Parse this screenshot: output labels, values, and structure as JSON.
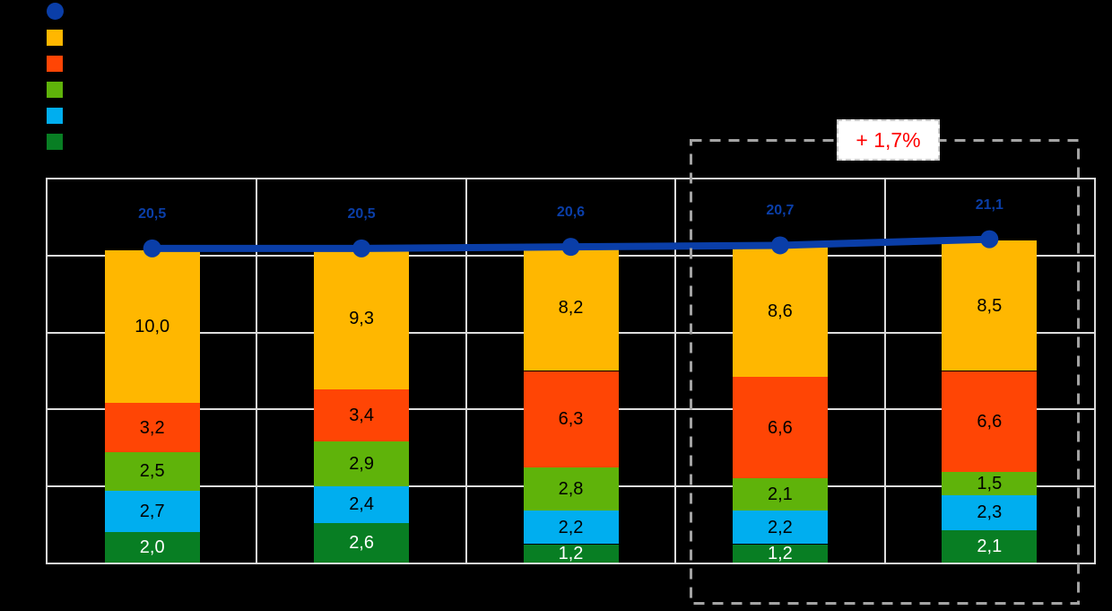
{
  "canvas": {
    "background": "#000000"
  },
  "colors": {
    "grid": "#DCDCDC",
    "line_blue": "#0A3EA8",
    "dashed_box": "#A3A3A3",
    "annotation_red": "#FE0000",
    "annotation_bg": "#FFFFFF"
  },
  "legend": {
    "items": [
      {
        "name": "total-line-marker",
        "marker": "circle",
        "color": "#0A3EA8",
        "label": ""
      },
      {
        "name": "series-yellow",
        "marker": "square",
        "color": "#FFB700",
        "label": ""
      },
      {
        "name": "series-orange",
        "marker": "square",
        "color": "#FF4505",
        "label": ""
      },
      {
        "name": "series-green",
        "marker": "square",
        "color": "#5FB30A",
        "label": ""
      },
      {
        "name": "series-cyan",
        "marker": "square",
        "color": "#00AEEF",
        "label": ""
      },
      {
        "name": "series-darkgreen",
        "marker": "square",
        "color": "#087E23",
        "label": ""
      }
    ]
  },
  "chart_data": {
    "type": "bar",
    "subtype": "stacked-column-with-total-line",
    "categories": [
      "",
      "",
      "",
      "",
      ""
    ],
    "series": [
      {
        "name": "darkgreen-bottom",
        "color": "#087E23",
        "label_color": "#FFFFFF",
        "values": [
          2.0,
          2.6,
          1.2,
          1.2,
          2.1
        ],
        "labels": [
          "2,0",
          "2,6",
          "1,2",
          "1,2",
          "2,1"
        ]
      },
      {
        "name": "cyan",
        "color": "#00AEEF",
        "label_color": "#000000",
        "values": [
          2.7,
          2.4,
          2.2,
          2.2,
          2.3
        ],
        "labels": [
          "2,7",
          "2,4",
          "2,2",
          "2,2",
          "2,3"
        ]
      },
      {
        "name": "green",
        "color": "#5FB30A",
        "label_color": "#000000",
        "values": [
          2.5,
          2.9,
          2.8,
          2.1,
          1.5
        ],
        "labels": [
          "2,5",
          "2,9",
          "2,8",
          "2,1",
          "1,5"
        ]
      },
      {
        "name": "orange",
        "color": "#FF4505",
        "label_color": "#000000",
        "values": [
          3.2,
          3.4,
          6.3,
          6.6,
          6.6
        ],
        "labels": [
          "3,2",
          "3,4",
          "6,3",
          "6,6",
          "6,6"
        ]
      },
      {
        "name": "yellow-top",
        "color": "#FFB700",
        "label_color": "#000000",
        "values": [
          10.0,
          9.3,
          8.2,
          8.6,
          8.5
        ],
        "labels": [
          "10,0",
          "9,3",
          "8,2",
          "8,6",
          "8,5"
        ]
      }
    ],
    "line": {
      "name": "total-line",
      "color": "#0A3EA8",
      "values": [
        20.5,
        20.5,
        20.6,
        20.7,
        21.1
      ],
      "labels": [
        "20,5",
        "20,5",
        "20,6",
        "20,7",
        "21,1"
      ]
    },
    "title": "",
    "xlabel": "",
    "ylabel": "",
    "ylim": [
      0,
      25
    ],
    "grid_step": 5,
    "grid": true,
    "legend_position": "top-left"
  },
  "annotation": {
    "text": "+ 1,7%"
  },
  "highlight_box": {
    "style": "dashed",
    "color": "#A3A3A3",
    "encloses": "last two categories"
  }
}
